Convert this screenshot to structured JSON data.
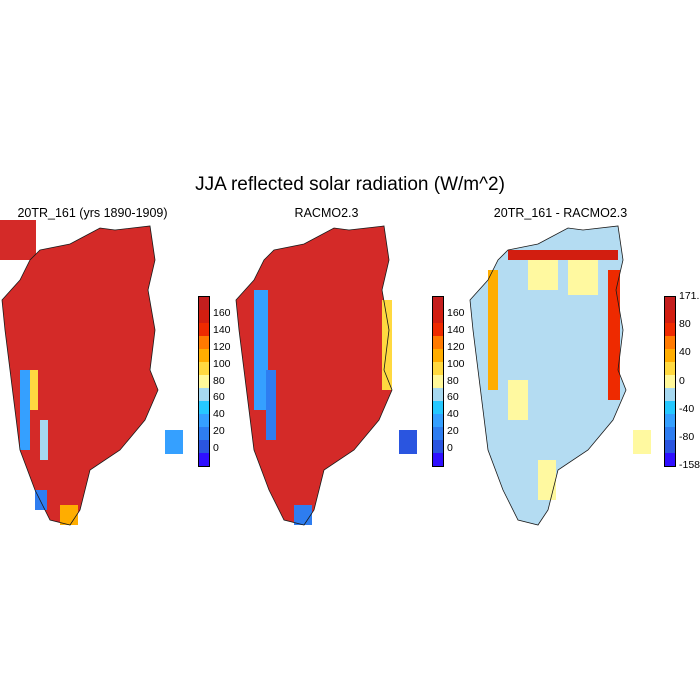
{
  "figure": {
    "title": "JJA reflected solar radiation (W/m^2)"
  },
  "panels": [
    {
      "title": "20TR_161 (yrs 1890-1909)",
      "colorbar": [
        "#2f0fff",
        "#2a55e0",
        "#2e7df0",
        "#35a0ff",
        "#26c8ff",
        "#a6d8f0",
        "#fff89a",
        "#ffd940",
        "#ffad00",
        "#ff7a00",
        "#ee2a00",
        "#d21e10",
        "#c41e1e"
      ],
      "labels": [
        "0",
        "20",
        "40",
        "60",
        "80",
        "100",
        "120",
        "140",
        "160"
      ]
    },
    {
      "title": "RACMO2.3",
      "colorbar": [
        "#2f0fff",
        "#2a55e0",
        "#2e7df0",
        "#35a0ff",
        "#26c8ff",
        "#a6d8f0",
        "#fff89a",
        "#ffd940",
        "#ffad00",
        "#ff7a00",
        "#ee2a00",
        "#d21e10",
        "#c41e1e"
      ],
      "labels": [
        "0",
        "20",
        "40",
        "60",
        "80",
        "100",
        "120",
        "140",
        "160"
      ]
    },
    {
      "title": "20TR_161 - RACMO2.3",
      "colorbar": [
        "#2f0fff",
        "#2a55e0",
        "#2e7df0",
        "#35a0ff",
        "#26c8ff",
        "#a6d8f0",
        "#fff89a",
        "#ffd940",
        "#ffad00",
        "#ff7a00",
        "#ee2a00",
        "#d21e10",
        "#c41e1e"
      ],
      "labels": [
        "171.",
        "80",
        "40",
        "0",
        "-40",
        "-80",
        "-158."
      ]
    }
  ],
  "colors": {
    "high_red": "#d42a28",
    "light_blue": "#b4dcf2",
    "light_yellow": "#fff9a0",
    "coast_line": "#1a1a1a"
  }
}
